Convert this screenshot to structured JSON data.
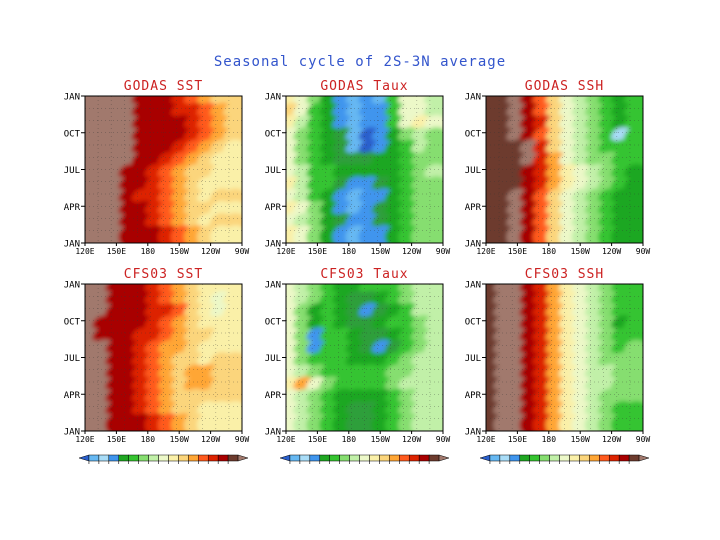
{
  "chart_data": {
    "type": "heatmap",
    "title": "Seasonal cycle of 2S-3N average",
    "y_tick_labels": [
      "JAN",
      "OCT",
      "JUL",
      "APR",
      "JAN"
    ],
    "colors": {
      "title": "#3355cc",
      "panel_title": "#cc2222",
      "palette": [
        "#6d3b2e",
        "#a1796d",
        "#a80000",
        "#dd2200",
        "#ff5a1e",
        "#ffa635",
        "#fbd57b",
        "#faf0a8",
        "#ecf8c8",
        "#c1f0a8",
        "#86de70",
        "#35c430",
        "#1fa722",
        "#2f9f3a",
        "#3f95ee",
        "#66b8f2",
        "#a8dcf7",
        "#2a5fcc"
      ]
    },
    "panels": [
      {
        "title": "GODAS SST",
        "x_tick_labels": [
          "120E",
          "150E",
          "180",
          "150W",
          "120W",
          "90W"
        ],
        "colorbar": false,
        "field": [
          [
            1,
            1,
            1,
            1,
            2,
            2,
            2,
            3,
            4,
            5,
            6,
            6
          ],
          [
            1,
            1,
            1,
            1,
            2,
            2,
            2,
            3,
            3,
            4,
            5,
            6
          ],
          [
            1,
            1,
            1,
            1,
            2,
            2,
            2,
            2,
            3,
            4,
            5,
            6
          ],
          [
            1,
            1,
            1,
            1,
            2,
            2,
            2,
            2,
            3,
            4,
            5,
            6
          ],
          [
            1,
            1,
            1,
            1,
            2,
            2,
            2,
            3,
            4,
            5,
            6,
            7
          ],
          [
            1,
            1,
            1,
            1,
            2,
            2,
            3,
            4,
            5,
            6,
            7,
            7
          ],
          [
            1,
            1,
            1,
            2,
            2,
            3,
            4,
            5,
            6,
            6,
            7,
            7
          ],
          [
            1,
            1,
            1,
            2,
            2,
            3,
            4,
            5,
            6,
            7,
            7,
            7
          ],
          [
            1,
            1,
            1,
            2,
            3,
            3,
            4,
            5,
            6,
            7,
            6,
            6
          ],
          [
            1,
            1,
            1,
            2,
            2,
            3,
            4,
            5,
            6,
            6,
            7,
            7
          ],
          [
            1,
            1,
            1,
            2,
            2,
            3,
            4,
            5,
            6,
            7,
            6,
            6
          ],
          [
            1,
            1,
            1,
            2,
            2,
            2,
            3,
            4,
            5,
            6,
            7,
            7
          ]
        ]
      },
      {
        "title": "GODAS Taux",
        "x_tick_labels": [
          "120E",
          "150E",
          "180",
          "150W",
          "120W",
          "90W"
        ],
        "colorbar": false,
        "field": [
          [
            7,
            8,
            10,
            12,
            14,
            15,
            14,
            15,
            11,
            8,
            8,
            9
          ],
          [
            6,
            8,
            11,
            12,
            14,
            15,
            14,
            14,
            11,
            8,
            8,
            9
          ],
          [
            7,
            9,
            11,
            12,
            14,
            15,
            14,
            14,
            11,
            8,
            7,
            8
          ],
          [
            8,
            10,
            11,
            12,
            13,
            15,
            17,
            14,
            12,
            10,
            9,
            10
          ],
          [
            8,
            10,
            11,
            12,
            13,
            15,
            17,
            14,
            12,
            11,
            9,
            10
          ],
          [
            8,
            10,
            11,
            12,
            13,
            13,
            13,
            12,
            12,
            11,
            10,
            10
          ],
          [
            8,
            9,
            11,
            11,
            12,
            12,
            12,
            12,
            12,
            11,
            10,
            9
          ],
          [
            7,
            9,
            11,
            11,
            13,
            14,
            14,
            13,
            12,
            11,
            10,
            10
          ],
          [
            8,
            9,
            11,
            12,
            14,
            15,
            14,
            14,
            12,
            11,
            10,
            10
          ],
          [
            7,
            8,
            10,
            12,
            14,
            15,
            14,
            13,
            12,
            11,
            10,
            10
          ],
          [
            8,
            9,
            10,
            12,
            13,
            14,
            14,
            13,
            12,
            11,
            10,
            10
          ],
          [
            7,
            8,
            10,
            12,
            14,
            15,
            14,
            14,
            12,
            11,
            10,
            10
          ]
        ]
      },
      {
        "title": "GODAS SSH",
        "x_tick_labels": [
          "120E",
          "150E",
          "180",
          "150W",
          "120W",
          "90W"
        ],
        "colorbar": false,
        "field": [
          [
            0,
            0,
            1,
            2,
            4,
            6,
            8,
            9,
            10,
            11,
            12,
            11
          ],
          [
            0,
            0,
            1,
            2,
            4,
            6,
            8,
            9,
            10,
            11,
            12,
            11
          ],
          [
            0,
            0,
            1,
            2,
            3,
            6,
            8,
            9,
            10,
            11,
            12,
            11
          ],
          [
            0,
            0,
            1,
            2,
            4,
            6,
            8,
            9,
            10,
            11,
            16,
            11
          ],
          [
            0,
            0,
            0,
            1,
            3,
            6,
            8,
            9,
            10,
            11,
            11,
            11
          ],
          [
            0,
            0,
            0,
            1,
            3,
            5,
            8,
            9,
            10,
            10,
            11,
            11
          ],
          [
            0,
            0,
            0,
            2,
            3,
            5,
            7,
            8,
            9,
            10,
            11,
            12
          ],
          [
            0,
            0,
            0,
            2,
            3,
            5,
            7,
            8,
            9,
            10,
            11,
            12
          ],
          [
            0,
            0,
            1,
            2,
            4,
            6,
            8,
            9,
            10,
            11,
            12,
            12
          ],
          [
            0,
            0,
            1,
            2,
            4,
            6,
            8,
            9,
            10,
            11,
            12,
            12
          ],
          [
            0,
            0,
            1,
            2,
            4,
            6,
            8,
            9,
            10,
            11,
            12,
            12
          ],
          [
            0,
            0,
            1,
            2,
            4,
            6,
            8,
            9,
            10,
            11,
            12,
            12
          ]
        ]
      },
      {
        "title": "CFS03 SST",
        "x_tick_labels": [
          "120E",
          "150E",
          "180",
          "150W",
          "120W",
          "90W"
        ],
        "colorbar": true,
        "field": [
          [
            1,
            1,
            2,
            2,
            2,
            3,
            4,
            5,
            6,
            7,
            7,
            7
          ],
          [
            1,
            1,
            2,
            2,
            2,
            3,
            4,
            5,
            6,
            7,
            8,
            7
          ],
          [
            1,
            1,
            2,
            2,
            2,
            3,
            3,
            4,
            6,
            7,
            8,
            7
          ],
          [
            1,
            2,
            2,
            2,
            2,
            3,
            4,
            5,
            6,
            7,
            7,
            7
          ],
          [
            1,
            2,
            2,
            2,
            3,
            3,
            4,
            5,
            6,
            6,
            7,
            7
          ],
          [
            1,
            1,
            2,
            2,
            3,
            4,
            5,
            5,
            6,
            7,
            7,
            7
          ],
          [
            1,
            1,
            2,
            2,
            3,
            4,
            5,
            6,
            6,
            7,
            6,
            6
          ],
          [
            1,
            1,
            2,
            2,
            3,
            4,
            5,
            6,
            5,
            5,
            6,
            6
          ],
          [
            1,
            1,
            2,
            2,
            3,
            4,
            5,
            6,
            5,
            5,
            6,
            6
          ],
          [
            1,
            1,
            2,
            2,
            3,
            4,
            5,
            6,
            6,
            6,
            6,
            6
          ],
          [
            1,
            1,
            2,
            2,
            3,
            4,
            5,
            6,
            6,
            7,
            7,
            7
          ],
          [
            1,
            1,
            2,
            2,
            2,
            3,
            4,
            5,
            6,
            7,
            7,
            7
          ]
        ]
      },
      {
        "title": "CFS03 Taux",
        "x_tick_labels": [
          "120E",
          "150E",
          "180",
          "150W",
          "120W",
          "90W"
        ],
        "colorbar": true,
        "field": [
          [
            8,
            9,
            10,
            11,
            12,
            12,
            11,
            11,
            11,
            10,
            9,
            9
          ],
          [
            8,
            9,
            10,
            11,
            12,
            13,
            13,
            12,
            11,
            10,
            9,
            9
          ],
          [
            8,
            10,
            12,
            11,
            12,
            13,
            14,
            13,
            12,
            11,
            9,
            9
          ],
          [
            8,
            10,
            12,
            11,
            12,
            13,
            13,
            12,
            11,
            11,
            10,
            9
          ],
          [
            8,
            10,
            14,
            11,
            11,
            12,
            13,
            13,
            12,
            11,
            10,
            9
          ],
          [
            8,
            10,
            14,
            11,
            11,
            12,
            13,
            14,
            13,
            11,
            10,
            9
          ],
          [
            8,
            10,
            11,
            11,
            11,
            12,
            12,
            12,
            11,
            10,
            9,
            9
          ],
          [
            8,
            9,
            10,
            11,
            11,
            11,
            11,
            11,
            10,
            10,
            9,
            9
          ],
          [
            7,
            5,
            8,
            10,
            11,
            11,
            11,
            11,
            10,
            9,
            9,
            9
          ],
          [
            8,
            9,
            10,
            11,
            12,
            12,
            12,
            12,
            11,
            10,
            9,
            9
          ],
          [
            8,
            9,
            10,
            11,
            12,
            13,
            13,
            12,
            11,
            10,
            9,
            9
          ],
          [
            8,
            9,
            10,
            11,
            12,
            13,
            13,
            12,
            11,
            10,
            9,
            9
          ]
        ]
      },
      {
        "title": "CFS03 SSH",
        "x_tick_labels": [
          "120E",
          "150E",
          "180",
          "150W",
          "120W",
          "90W"
        ],
        "colorbar": true,
        "field": [
          [
            0,
            1,
            1,
            2,
            3,
            5,
            7,
            8,
            9,
            10,
            11,
            11
          ],
          [
            0,
            1,
            1,
            2,
            3,
            5,
            7,
            8,
            9,
            10,
            11,
            11
          ],
          [
            0,
            1,
            1,
            2,
            3,
            5,
            7,
            8,
            9,
            10,
            11,
            11
          ],
          [
            0,
            1,
            1,
            2,
            3,
            5,
            7,
            8,
            9,
            10,
            12,
            11
          ],
          [
            0,
            1,
            1,
            2,
            3,
            5,
            7,
            8,
            9,
            10,
            11,
            11
          ],
          [
            0,
            1,
            1,
            2,
            3,
            5,
            7,
            8,
            9,
            10,
            11,
            10
          ],
          [
            0,
            1,
            1,
            2,
            3,
            5,
            7,
            8,
            9,
            10,
            10,
            10
          ],
          [
            0,
            1,
            1,
            2,
            3,
            5,
            7,
            8,
            9,
            9,
            10,
            10
          ],
          [
            0,
            1,
            1,
            2,
            3,
            5,
            7,
            8,
            9,
            9,
            10,
            10
          ],
          [
            0,
            1,
            1,
            2,
            3,
            5,
            7,
            8,
            9,
            10,
            10,
            10
          ],
          [
            0,
            1,
            1,
            2,
            3,
            5,
            7,
            8,
            9,
            10,
            11,
            11
          ],
          [
            0,
            1,
            1,
            2,
            3,
            5,
            7,
            8,
            9,
            10,
            11,
            11
          ]
        ]
      }
    ]
  }
}
